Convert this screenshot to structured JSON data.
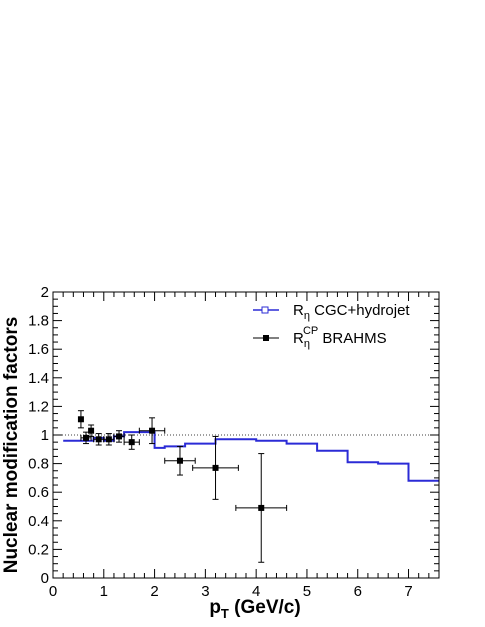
{
  "chart_data": {
    "type": "line",
    "xlabel_main": "p",
    "xlabel_sub": "T",
    "xlabel_units": " (GeV/c)",
    "ylabel": "Nuclear modification factors",
    "xlim": [
      0,
      7.6
    ],
    "ylim": [
      0,
      2
    ],
    "x_ticks": [
      "0",
      "1",
      "2",
      "3",
      "4",
      "5",
      "6",
      "7"
    ],
    "y_ticks": [
      "0",
      "0.2",
      "0.4",
      "0.6",
      "0.8",
      "1",
      "1.2",
      "1.4",
      "1.6",
      "1.8",
      "2"
    ],
    "x_tick_values": [
      0,
      1,
      2,
      3,
      4,
      5,
      6,
      7
    ],
    "y_tick_values": [
      0,
      0.2,
      0.4,
      0.6,
      0.8,
      1,
      1.2,
      1.4,
      1.6,
      1.8,
      2
    ],
    "reference_line": 1.0,
    "grid": false,
    "legend_position": "top-right",
    "series": [
      {
        "legend_main": "R",
        "legend_sub": "η",
        "legend_sup": "",
        "legend_rest": " CGC+hydrojet",
        "color": "#2b2bd6",
        "style": "histogram",
        "bin_edges": [
          0.2,
          0.8,
          1.0,
          1.2,
          1.4,
          2.0,
          2.2,
          2.6,
          3.2,
          4.0,
          4.6,
          5.2,
          5.8,
          6.4,
          7.0,
          7.6
        ],
        "values": [
          0.96,
          0.98,
          0.96,
          0.99,
          1.02,
          0.91,
          0.92,
          0.94,
          0.97,
          0.96,
          0.94,
          0.89,
          0.81,
          0.8,
          0.68
        ]
      },
      {
        "legend_main": "R",
        "legend_sub": "η",
        "legend_sup": "CP",
        "legend_rest": " BRAHMS",
        "color": "#000000",
        "style": "points",
        "points": [
          {
            "x": 0.55,
            "y": 1.11,
            "xerr": 0.0,
            "yerr": 0.06
          },
          {
            "x": 0.65,
            "y": 0.98,
            "xerr": 0.1,
            "yerr": 0.04
          },
          {
            "x": 0.75,
            "y": 1.03,
            "xerr": 0.0,
            "yerr": 0.04
          },
          {
            "x": 0.9,
            "y": 0.97,
            "xerr": 0.1,
            "yerr": 0.04
          },
          {
            "x": 1.1,
            "y": 0.97,
            "xerr": 0.1,
            "yerr": 0.04
          },
          {
            "x": 1.3,
            "y": 0.99,
            "xerr": 0.1,
            "yerr": 0.04
          },
          {
            "x": 1.55,
            "y": 0.95,
            "xerr": 0.15,
            "yerr": 0.05
          },
          {
            "x": 1.95,
            "y": 1.03,
            "xerr": 0.25,
            "yerr": 0.09
          },
          {
            "x": 2.5,
            "y": 0.82,
            "xerr": 0.3,
            "yerr": 0.1
          },
          {
            "x": 3.2,
            "y": 0.77,
            "xerr": 0.45,
            "yerr": 0.22
          },
          {
            "x": 4.1,
            "y": 0.49,
            "xerr": 0.5,
            "yerr": 0.38
          }
        ]
      }
    ]
  }
}
